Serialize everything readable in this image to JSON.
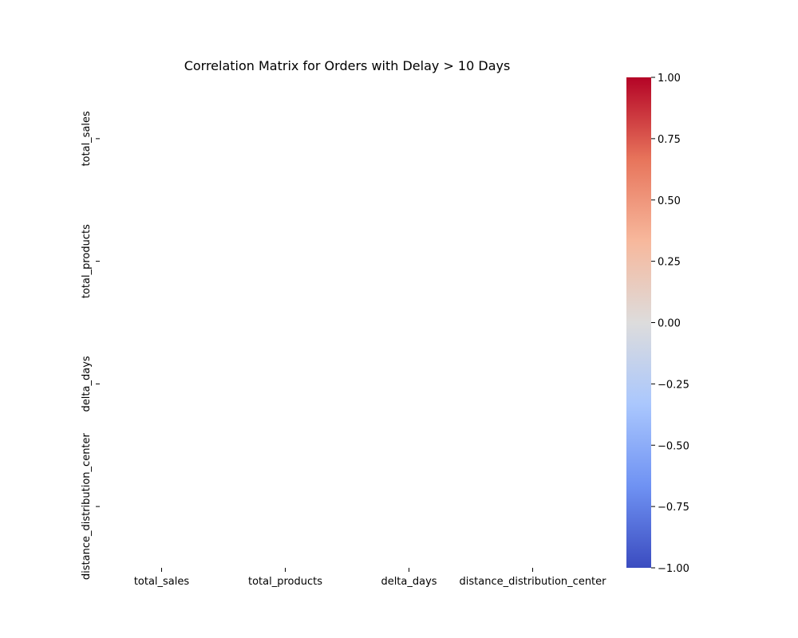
{
  "chart_data": {
    "type": "heatmap",
    "title": "Correlation Matrix for Orders with Delay > 10 Days",
    "xlabel": "",
    "ylabel": "",
    "x_categories": [
      "total_sales",
      "total_products",
      "delta_days",
      "distance_distribution_center"
    ],
    "y_categories": [
      "total_sales",
      "total_products",
      "delta_days",
      "distance_distribution_center"
    ],
    "values": [
      [
        null,
        null,
        null,
        null
      ],
      [
        null,
        null,
        null,
        null
      ],
      [
        null,
        null,
        null,
        null
      ],
      [
        null,
        null,
        null,
        null
      ]
    ],
    "colorbar": {
      "colormap": "coolwarm",
      "vmin": -1.0,
      "vmax": 1.0,
      "ticks": [
        1.0,
        0.75,
        0.5,
        0.25,
        0.0,
        -0.25,
        -0.5,
        -0.75,
        -1.0
      ],
      "tick_labels": [
        "1.00",
        "0.75",
        "0.50",
        "0.25",
        "0.00",
        "−0.25",
        "−0.50",
        "−0.75",
        "−1.00"
      ],
      "colors": [
        "#3b4cc0",
        "#6f92f3",
        "#aac7fd",
        "#dddcdc",
        "#f7b89c",
        "#e7745b",
        "#b40426"
      ]
    },
    "grid": false,
    "legend": "none"
  }
}
